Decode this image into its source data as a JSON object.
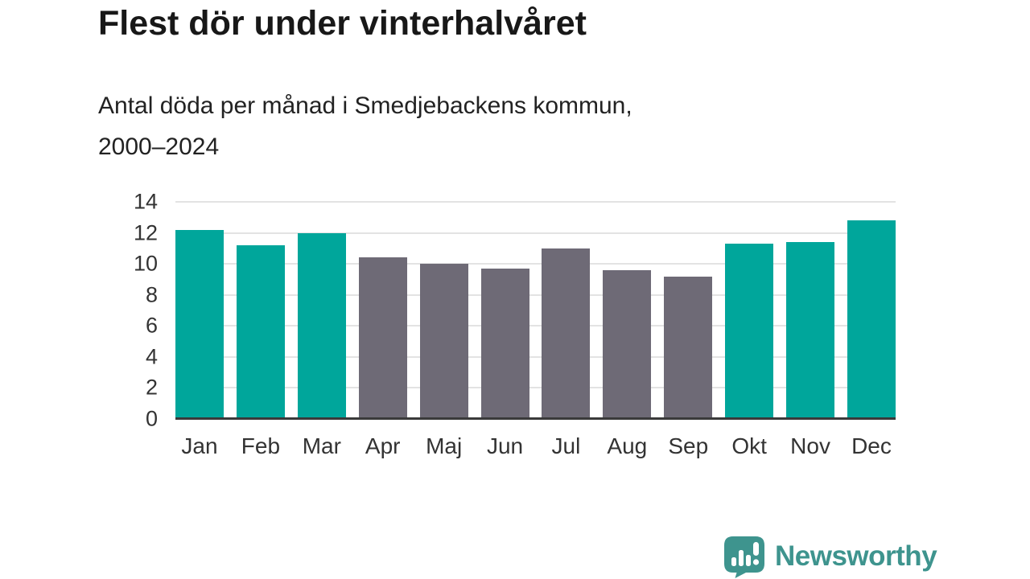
{
  "header": {
    "title": "Flest dör under vinterhalvåret",
    "subtitle_line1": "Antal döda per månad i Smedjebackens kommun,",
    "subtitle_line2": "2000–2024"
  },
  "chart_data": {
    "type": "bar",
    "title": "Flest dör under vinterhalvåret",
    "subtitle": "Antal döda per månad i Smedjebackens kommun, 2000–2024",
    "categories": [
      "Jan",
      "Feb",
      "Mar",
      "Apr",
      "Maj",
      "Jun",
      "Jul",
      "Aug",
      "Sep",
      "Okt",
      "Nov",
      "Dec"
    ],
    "values": [
      12.2,
      11.2,
      12.0,
      10.4,
      10.0,
      9.7,
      11.0,
      9.6,
      9.2,
      11.3,
      11.4,
      12.8
    ],
    "highlighted": [
      true,
      true,
      true,
      false,
      false,
      false,
      false,
      false,
      false,
      true,
      true,
      true
    ],
    "xlabel": "",
    "ylabel": "",
    "ylim": [
      0,
      14
    ],
    "yticks": [
      0,
      2,
      4,
      6,
      8,
      10,
      12,
      14
    ],
    "grid": true,
    "legend_position": "none",
    "colors": {
      "highlight": "#00a69b",
      "muted": "#6e6a76",
      "axis": "#3a3a3a",
      "grid": "#e3e3e3",
      "tick_text": "#333333"
    }
  },
  "footer": {
    "brand": "Newsworthy",
    "brand_color": "#3e948e",
    "logo_icon": "newsworthy-speech-bubble-chart-icon"
  }
}
